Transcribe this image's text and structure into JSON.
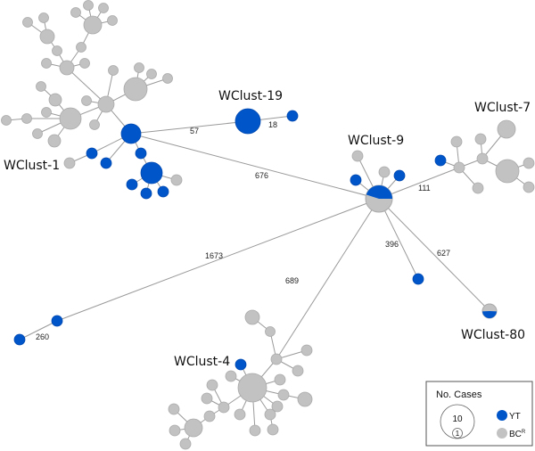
{
  "colors": {
    "YT": "#0055c8",
    "BCR": "#c2c2c2",
    "edge": "#9a9a9a"
  },
  "clusters": {
    "wclust1": "WClust-1",
    "wclust19": "WClust-19",
    "wclust9": "WClust-9",
    "wclust7": "WClust-7",
    "wclust4": "WClust-4",
    "wclust80": "WClust-80"
  },
  "edge_labels": {
    "e57": "57",
    "e18": "18",
    "e676": "676",
    "e111": "111",
    "e396": "396",
    "e627": "627",
    "e689": "689",
    "e1673": "1673",
    "e260": "260"
  },
  "legend": {
    "title": "No. Cases",
    "size_large": "10",
    "size_small": "1",
    "yt_label": "YT",
    "bc_label": "BC",
    "bc_superscript": "R"
  }
}
